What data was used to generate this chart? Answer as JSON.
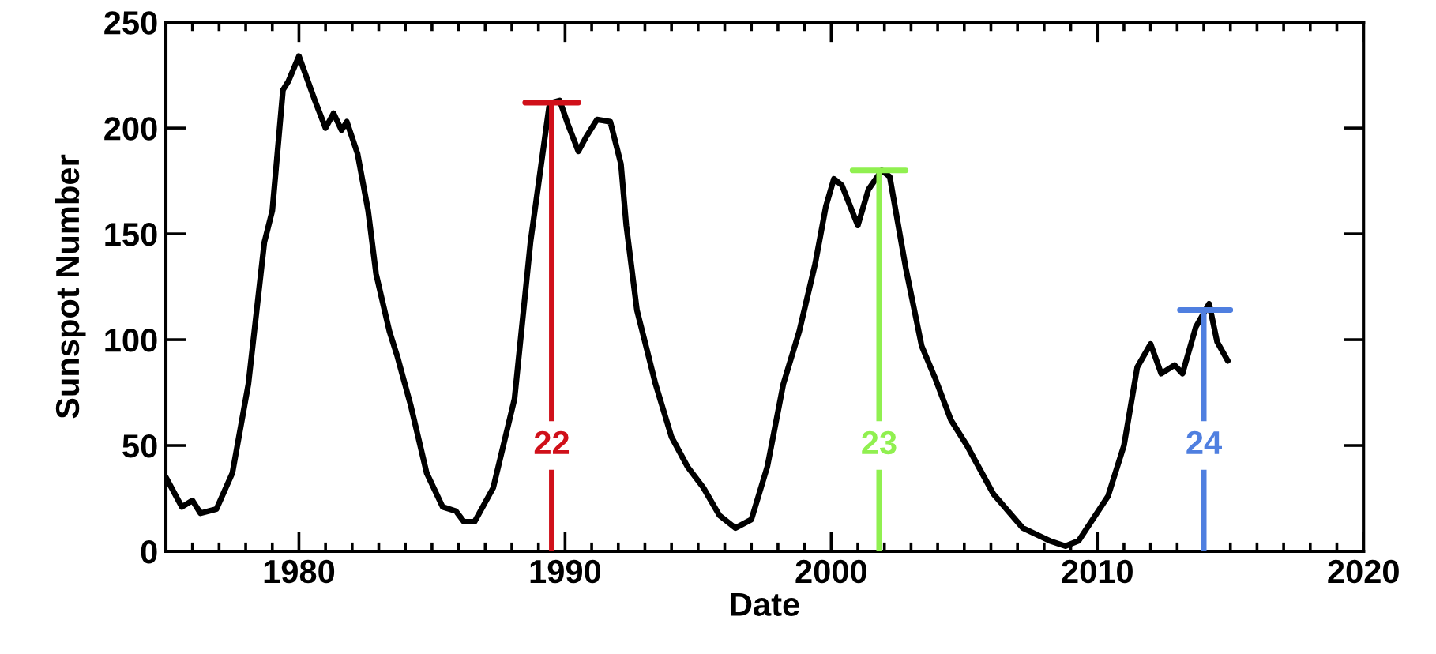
{
  "chart_data": {
    "type": "line",
    "xlabel": "Date",
    "ylabel": "Sunspot Number",
    "xlim": [
      1975,
      2020
    ],
    "ylim": [
      0,
      250
    ],
    "xticks": [
      1980,
      1990,
      2000,
      2010,
      2020
    ],
    "yticks": [
      0,
      50,
      100,
      150,
      200,
      250
    ],
    "grid": false,
    "marker": "none",
    "line_style": "solid",
    "series": [
      {
        "color": "#000000",
        "x": [
          1975.0,
          1975.6,
          1976.0,
          1976.3,
          1976.9,
          1977.5,
          1978.1,
          1978.7,
          1979.0,
          1979.4,
          1979.6,
          1980.0,
          1980.6,
          1981.0,
          1981.3,
          1981.6,
          1981.8,
          1982.2,
          1982.6,
          1982.9,
          1983.4,
          1983.7,
          1984.2,
          1984.8,
          1985.4,
          1985.9,
          1986.2,
          1986.6,
          1987.3,
          1988.1,
          1988.7,
          1989.4,
          1989.5,
          1989.8,
          1990.1,
          1990.5,
          1990.8,
          1991.2,
          1991.7,
          1992.1,
          1992.3,
          1992.7,
          1993.0,
          1993.4,
          1994.0,
          1994.6,
          1995.2,
          1995.8,
          1996.4,
          1997.0,
          1997.6,
          1998.2,
          1998.8,
          1999.4,
          1999.8,
          2000.1,
          2000.4,
          2001.0,
          2001.4,
          2001.9,
          2002.2,
          2002.8,
          2003.4,
          2003.9,
          2004.5,
          2005.1,
          2006.1,
          2007.2,
          2008.2,
          2008.8,
          2009.3,
          2010.4,
          2011.0,
          2011.5,
          2012.0,
          2012.4,
          2012.9,
          2013.2,
          2013.7,
          2014.2,
          2014.5,
          2014.9
        ],
        "values": [
          35,
          21,
          24,
          18,
          20,
          37,
          79,
          146,
          161,
          218,
          222,
          234,
          213,
          200,
          207,
          199,
          203,
          188,
          161,
          131,
          104,
          92,
          69,
          37,
          21,
          19,
          14,
          14,
          30,
          72,
          146,
          210,
          212,
          213,
          202,
          189,
          196,
          204,
          203,
          183,
          154,
          114,
          99,
          79,
          54,
          40,
          30,
          17,
          11,
          15,
          40,
          79,
          104,
          136,
          163,
          176,
          173,
          154,
          171,
          180,
          177,
          134,
          97,
          82,
          62,
          50,
          27,
          11,
          5,
          2.5,
          5,
          26,
          50,
          87,
          98,
          84,
          88,
          84,
          106,
          117,
          99,
          90
        ]
      },
      {
        "color": "#d0101a",
        "x": [
          1988.5,
          1990.5,
          1989.5,
          1989.5
        ],
        "values": [
          212,
          212,
          212,
          0
        ]
      },
      {
        "color": "#90f050",
        "x": [
          2000.8,
          2002.8,
          2001.8,
          2001.8
        ],
        "values": [
          180,
          180,
          180,
          0
        ]
      },
      {
        "color": "#4f7fe0",
        "x": [
          2013.1,
          2015.0,
          2014.0,
          2014.0
        ],
        "values": [
          114,
          114,
          114,
          0
        ]
      }
    ],
    "annotations": [
      {
        "text": "22",
        "x": 1989.5,
        "y": 50
      },
      {
        "text": "23",
        "x": 2001.8,
        "y": 50
      },
      {
        "text": "24",
        "x": 2014.0,
        "y": 50
      }
    ]
  }
}
